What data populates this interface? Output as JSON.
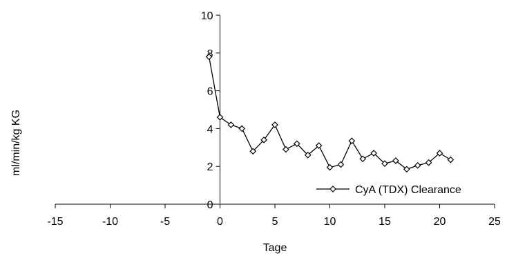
{
  "chart_data": {
    "type": "line",
    "xlabel": "Tage",
    "ylabel": "ml/min/kg KG",
    "xlim": [
      -15,
      25
    ],
    "ylim": [
      0,
      10
    ],
    "x_ticks": [
      -15,
      -10,
      -5,
      0,
      5,
      10,
      15,
      20,
      25
    ],
    "y_ticks": [
      0,
      2,
      4,
      6,
      8,
      10
    ],
    "grid": false,
    "legend_position": "lower-right",
    "series": [
      {
        "name": "CyA (TDX) Clearance",
        "marker": "diamond",
        "color": "#000000",
        "x": [
          -1,
          0,
          1,
          2,
          3,
          4,
          5,
          6,
          7,
          8,
          9,
          10,
          11,
          12,
          13,
          14,
          15,
          16,
          17,
          18,
          19,
          20,
          21
        ],
        "y": [
          7.8,
          4.6,
          4.2,
          4.0,
          2.8,
          3.4,
          4.2,
          2.9,
          3.2,
          2.6,
          3.1,
          1.95,
          2.1,
          3.35,
          2.4,
          2.7,
          2.15,
          2.3,
          1.85,
          2.05,
          2.2,
          2.7,
          2.35
        ]
      }
    ]
  }
}
